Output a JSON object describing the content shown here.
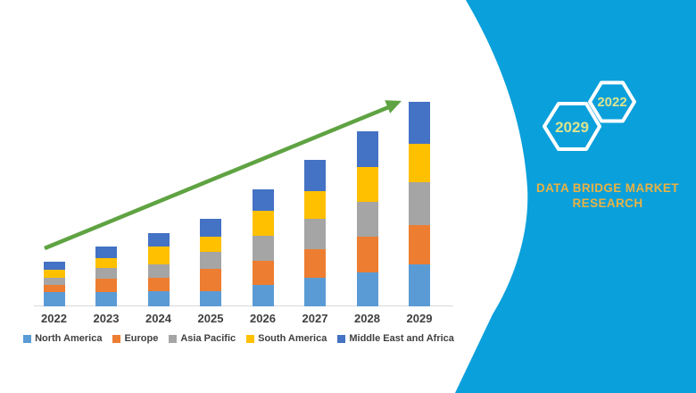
{
  "brand_panel": {
    "background_color": "#0aa0db",
    "hexagon_stroke_color": "#ffffff",
    "hexagon_label_color": "#dce48f",
    "hexagon_large_label": "2029",
    "hexagon_small_label": "2022",
    "brand_text_color": "#eab243",
    "brand_name_line1": "DATA BRIDGE MARKET",
    "brand_name_line2": "RESEARCH"
  },
  "chart_data": {
    "type": "bar",
    "stacked": true,
    "title": "",
    "xlabel": "",
    "ylabel": "",
    "y_axis_shown": false,
    "grid": false,
    "legend_position": "bottom",
    "categories": [
      "2022",
      "2023",
      "2024",
      "2025",
      "2026",
      "2027",
      "2028",
      "2029"
    ],
    "series": [
      {
        "name": "North America",
        "color": "#5B9BD5",
        "values": [
          16,
          16,
          17,
          17,
          24,
          32,
          38,
          47
        ]
      },
      {
        "name": "Europe",
        "color": "#ED7D31",
        "values": [
          8,
          15,
          15,
          25,
          27,
          32,
          40,
          44
        ]
      },
      {
        "name": "Asia Pacific",
        "color": "#A5A5A5",
        "values": [
          8,
          12,
          15,
          19,
          28,
          34,
          39,
          48
        ]
      },
      {
        "name": "South America",
        "color": "#FFC000",
        "values": [
          9,
          11,
          20,
          17,
          28,
          31,
          39,
          43
        ]
      },
      {
        "name": "Middle East and Africa",
        "color": "#4472C4",
        "values": [
          9,
          13,
          15,
          20,
          24,
          35,
          40,
          47
        ]
      }
    ],
    "stack_totals": [
      50,
      67,
      82,
      98,
      131,
      164,
      196,
      229
    ],
    "units": "relative index (no value axis shown in image)",
    "trend_arrow": {
      "color": "#5fa342",
      "direction": "up-right",
      "meaning": "market growth trend"
    }
  }
}
